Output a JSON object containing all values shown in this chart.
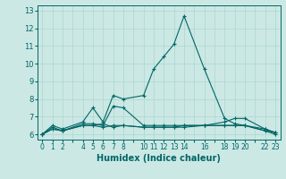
{
  "title": "",
  "xlabel": "Humidex (Indice chaleur)",
  "ylabel": "",
  "bg_color": "#cce8e4",
  "line_color": "#006666",
  "grid_color": "#aad8d0",
  "xlim": [
    -0.5,
    23.5
  ],
  "ylim": [
    5.7,
    13.3
  ],
  "yticks": [
    6,
    7,
    8,
    9,
    10,
    11,
    12,
    13
  ],
  "xtick_labels": [
    "0",
    "1",
    "2",
    "",
    "4",
    "5",
    "6",
    "7",
    "8",
    "",
    "10",
    "11",
    "12",
    "13",
    "14",
    "",
    "16",
    "",
    "18",
    "19",
    "20",
    "",
    "22",
    "23"
  ],
  "xtick_positions": [
    0,
    1,
    2,
    3,
    4,
    5,
    6,
    7,
    8,
    9,
    10,
    11,
    12,
    13,
    14,
    15,
    16,
    17,
    18,
    19,
    20,
    21,
    22,
    23
  ],
  "lines": [
    {
      "x": [
        0,
        1,
        2,
        4,
        5,
        6,
        7,
        8,
        10,
        11,
        12,
        13,
        14,
        16,
        18,
        19,
        20,
        22,
        23
      ],
      "y": [
        6.0,
        6.5,
        6.3,
        6.7,
        7.5,
        6.7,
        8.2,
        8.0,
        8.2,
        9.7,
        10.4,
        11.1,
        12.7,
        9.7,
        6.9,
        6.6,
        6.5,
        6.3,
        6.1
      ]
    },
    {
      "x": [
        0,
        1,
        2,
        4,
        5,
        6,
        7,
        8,
        10,
        11,
        12,
        13,
        14,
        16,
        18,
        19,
        20,
        22,
        23
      ],
      "y": [
        6.0,
        6.4,
        6.2,
        6.6,
        6.6,
        6.5,
        7.6,
        7.5,
        6.5,
        6.5,
        6.5,
        6.5,
        6.5,
        6.5,
        6.7,
        6.9,
        6.9,
        6.3,
        6.1
      ]
    },
    {
      "x": [
        0,
        1,
        2,
        4,
        5,
        6,
        7,
        8,
        10,
        11,
        12,
        13,
        14,
        16,
        18,
        19,
        20,
        22,
        23
      ],
      "y": [
        6.0,
        6.3,
        6.2,
        6.5,
        6.5,
        6.4,
        6.5,
        6.5,
        6.4,
        6.4,
        6.4,
        6.4,
        6.5,
        6.5,
        6.5,
        6.5,
        6.5,
        6.2,
        6.1
      ]
    },
    {
      "x": [
        0,
        1,
        2,
        4,
        5,
        6,
        7,
        8,
        10,
        11,
        12,
        13,
        14,
        16,
        18,
        19,
        20,
        22,
        23
      ],
      "y": [
        6.0,
        6.3,
        6.2,
        6.5,
        6.5,
        6.6,
        6.4,
        6.5,
        6.4,
        6.4,
        6.4,
        6.4,
        6.4,
        6.5,
        6.5,
        6.5,
        6.5,
        6.2,
        6.0
      ]
    }
  ]
}
